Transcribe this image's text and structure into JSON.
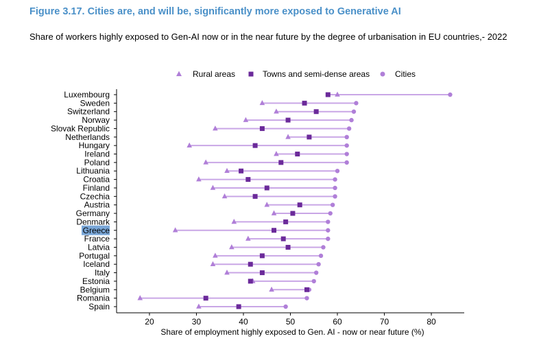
{
  "header": {
    "title": "Figure 3.17. Cities are, and will be, significantly more exposed to Generative AI",
    "subtitle": "Share of workers highly exposed to Gen-AI now or in the near future by the degree of urbanisation in EU countries,- 2022"
  },
  "colors": {
    "title": "#4a90c8",
    "rural": "#b07fd8",
    "towns": "#6b2a9a",
    "cities": "#b07fd8",
    "range_line": "#c9a6e6",
    "highlight_bg": "#7aa7d8"
  },
  "chart_data": {
    "type": "dot-range",
    "xlabel": "Share of employment highly exposed to Gen. AI - now or near future (%)",
    "ylabel": "",
    "xlim": [
      13,
      87
    ],
    "xticks": [
      20,
      30,
      40,
      50,
      60,
      70,
      80
    ],
    "grid": false,
    "legend_position": "top",
    "legend": [
      {
        "key": "rural",
        "label": "Rural areas",
        "marker": "triangle"
      },
      {
        "key": "towns",
        "label": "Towns and semi-dense areas",
        "marker": "square"
      },
      {
        "key": "cities",
        "label": "Cities",
        "marker": "circle"
      }
    ],
    "highlighted_category": "Greece",
    "categories": [
      "Luxembourg",
      "Sweden",
      "Switzerland",
      "Norway",
      "Slovak Republic",
      "Netherlands",
      "Hungary",
      "Ireland",
      "Poland",
      "Lithuania",
      "Croatia",
      "Finland",
      "Czechia",
      "Austria",
      "Germany",
      "Denmark",
      "Greece",
      "France",
      "Latvia",
      "Portugal",
      "Iceland",
      "Italy",
      "Estonia",
      "Belgium",
      "Romania",
      "Spain"
    ],
    "series": [
      {
        "name": "Rural areas",
        "key": "rural",
        "values": [
          60,
          44,
          47,
          40.5,
          34,
          49.5,
          28.5,
          47,
          32,
          36.5,
          30.5,
          33.5,
          36,
          45,
          46.5,
          38,
          25.5,
          41,
          37.5,
          34,
          33.5,
          36.5,
          42,
          46,
          18,
          30.5
        ]
      },
      {
        "name": "Towns and semi-dense areas",
        "key": "towns",
        "values": [
          58,
          53,
          55.5,
          49.5,
          44,
          54,
          42.5,
          51.5,
          48,
          39.5,
          41,
          45,
          42.5,
          52,
          50.5,
          49,
          46.5,
          48.5,
          49.5,
          44,
          41.5,
          44,
          41.5,
          53.5,
          32,
          39
        ]
      },
      {
        "name": "Cities",
        "key": "cities",
        "values": [
          84,
          64,
          63.5,
          63,
          62.5,
          62,
          62,
          62,
          62,
          60,
          59.5,
          59.5,
          59.5,
          59,
          58.5,
          58,
          58,
          58,
          57,
          56.5,
          56,
          55.5,
          55,
          54,
          53.5,
          49
        ]
      }
    ]
  }
}
